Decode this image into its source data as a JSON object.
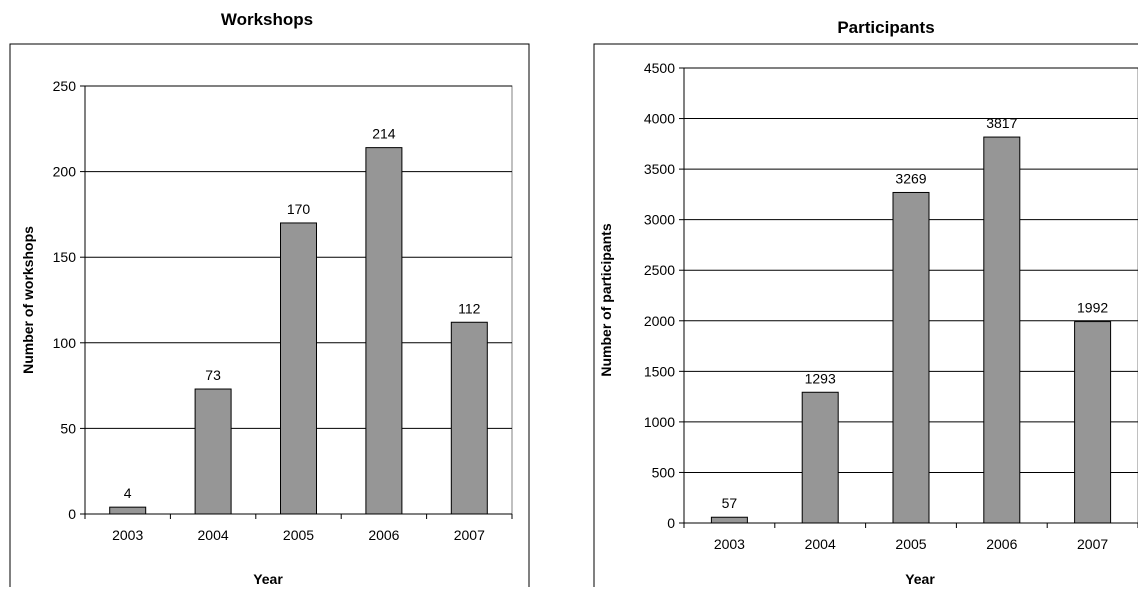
{
  "chart_data": [
    {
      "type": "bar",
      "title": "Workshops",
      "xlabel": "Year",
      "ylabel": "Number of workshops",
      "categories": [
        "2003",
        "2004",
        "2005",
        "2006",
        "2007"
      ],
      "values": [
        4,
        73,
        170,
        214,
        112
      ],
      "data_labels": [
        "4",
        "73",
        "170",
        "214",
        "112"
      ],
      "ylim": [
        0,
        250
      ],
      "yticks": [
        0,
        50,
        100,
        150,
        200,
        250
      ],
      "ytick_labels": [
        "0",
        "50",
        "100",
        "150",
        "200",
        "250"
      ],
      "grid": true,
      "legend": "none",
      "bar_color": "#969696"
    },
    {
      "type": "bar",
      "title": "Participants",
      "xlabel": "Year",
      "ylabel": "Number of participants",
      "categories": [
        "2003",
        "2004",
        "2005",
        "2006",
        "2007"
      ],
      "values": [
        57,
        1293,
        3269,
        3817,
        1992
      ],
      "data_labels": [
        "57",
        "1293",
        "3269",
        "3817",
        "1992"
      ],
      "ylim": [
        0,
        4500
      ],
      "yticks": [
        0,
        500,
        1000,
        1500,
        2000,
        2500,
        3000,
        3500,
        4000,
        4500
      ],
      "ytick_labels": [
        "0",
        "500",
        "1000",
        "1500",
        "2000",
        "2500",
        "3000",
        "3500",
        "4000",
        "4500"
      ],
      "grid": true,
      "legend": "none",
      "bar_color": "#969696"
    }
  ]
}
